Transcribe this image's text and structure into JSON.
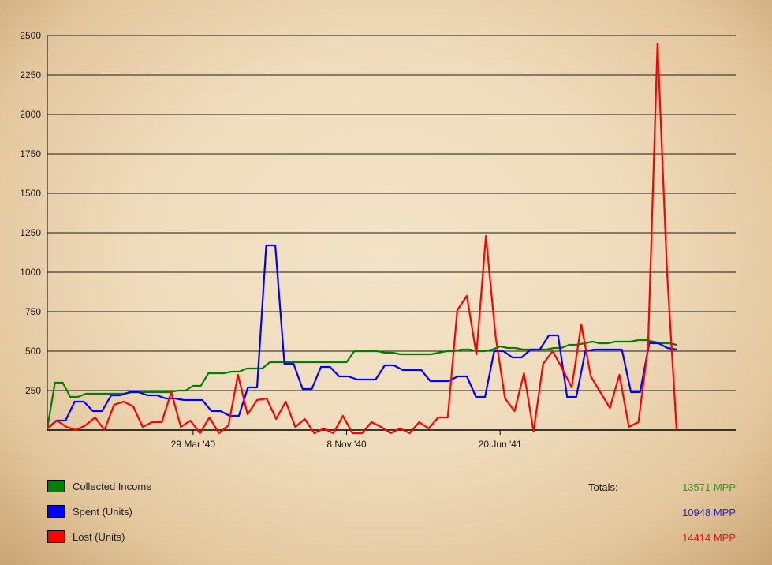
{
  "chart_data": {
    "type": "line",
    "title": "",
    "xlabel": "",
    "ylabel": "",
    "ylim": [
      0,
      2500
    ],
    "yticks": [
      250,
      500,
      750,
      1000,
      1250,
      1500,
      1750,
      2000,
      2250,
      2500
    ],
    "x_tick_labels": [
      "29 Mar '40",
      "8 Nov '40",
      "20 Jun '41"
    ],
    "x_tick_indices": [
      19,
      39,
      59
    ],
    "grid": true,
    "series": [
      {
        "name": "Collected Income",
        "color": "#008000",
        "values": [
          10,
          300,
          300,
          210,
          210,
          230,
          230,
          230,
          230,
          230,
          230,
          240,
          240,
          240,
          240,
          240,
          240,
          250,
          250,
          280,
          280,
          360,
          360,
          360,
          370,
          370,
          390,
          390,
          390,
          430,
          430,
          430,
          430,
          430,
          430,
          430,
          430,
          430,
          430,
          430,
          500,
          500,
          500,
          500,
          490,
          490,
          480,
          480,
          480,
          480,
          480,
          490,
          500,
          500,
          510,
          510,
          500,
          500,
          510,
          530,
          520,
          520,
          510,
          510,
          510,
          510,
          520,
          520,
          540,
          540,
          550,
          560,
          550,
          550,
          560,
          560,
          560,
          570,
          570,
          560,
          550,
          550,
          540
        ]
      },
      {
        "name": "Spent (Units)",
        "color": "#0000ff",
        "values": [
          10,
          60,
          60,
          180,
          180,
          120,
          120,
          220,
          220,
          240,
          240,
          220,
          220,
          200,
          200,
          190,
          190,
          190,
          120,
          120,
          90,
          90,
          270,
          270,
          1170,
          1170,
          420,
          420,
          260,
          260,
          400,
          400,
          340,
          340,
          320,
          320,
          320,
          410,
          410,
          380,
          380,
          380,
          310,
          310,
          310,
          340,
          340,
          210,
          210,
          500,
          500,
          460,
          460,
          510,
          510,
          600,
          600,
          210,
          210,
          500,
          510,
          510,
          510,
          510,
          240,
          240,
          550,
          550,
          520,
          510
        ]
      },
      {
        "name": "Lost (Units)",
        "color": "#ff0000",
        "values": [
          10,
          60,
          20,
          0,
          30,
          80,
          0,
          160,
          180,
          150,
          20,
          50,
          50,
          240,
          20,
          60,
          -20,
          80,
          -20,
          30,
          350,
          100,
          190,
          200,
          70,
          180,
          20,
          70,
          -20,
          10,
          -20,
          90,
          -20,
          -20,
          50,
          20,
          -20,
          10,
          -20,
          50,
          10,
          80,
          80,
          760,
          850,
          480,
          1230,
          600,
          200,
          120,
          360,
          -10,
          420,
          500,
          390,
          270,
          670,
          340,
          240,
          140,
          350,
          20,
          50,
          520,
          2450,
          1000,
          0
        ]
      }
    ],
    "legend_placement": "bottom-left"
  },
  "legend": {
    "items": [
      {
        "label": "Collected Income",
        "color": "#008000"
      },
      {
        "label": "Spent (Units)",
        "color": "#0000ff"
      },
      {
        "label": "Lost (Units)",
        "color": "#ff0000"
      }
    ]
  },
  "totals": {
    "label": "Totals:",
    "income": "13571 MPP",
    "spent": "10948 MPP",
    "lost": "14414 MPP"
  }
}
